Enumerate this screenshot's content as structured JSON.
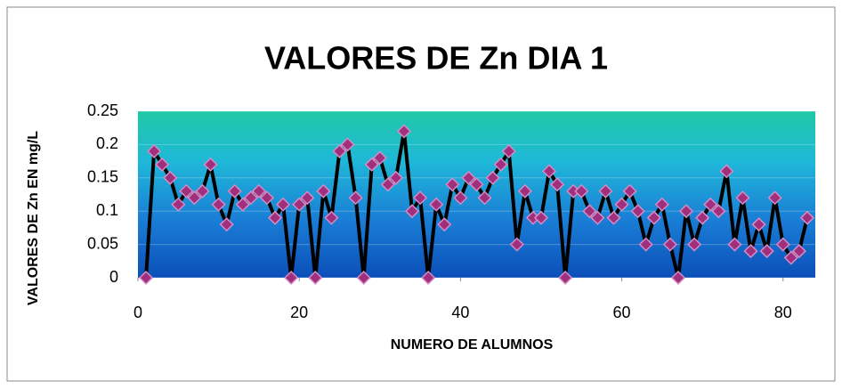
{
  "chart_data": {
    "type": "line",
    "title": "VALORES DE Zn DIA 1",
    "x_label": "NUMERO DE ALUMNOS",
    "y_label": "VALORES DE Zn EN mg/L",
    "x": [
      1,
      2,
      3,
      4,
      5,
      6,
      7,
      8,
      9,
      10,
      11,
      12,
      13,
      14,
      15,
      16,
      17,
      18,
      19,
      20,
      21,
      22,
      23,
      24,
      25,
      26,
      27,
      28,
      29,
      30,
      31,
      32,
      33,
      34,
      35,
      36,
      37,
      38,
      39,
      40,
      41,
      42,
      43,
      44,
      45,
      46,
      47,
      48,
      49,
      50,
      51,
      52,
      53,
      54,
      55,
      56,
      57,
      58,
      59,
      60,
      61,
      62,
      63,
      64,
      65,
      66,
      67,
      68,
      69,
      70,
      71,
      72,
      73,
      74,
      75,
      76,
      77,
      78,
      79,
      80,
      81,
      82,
      83
    ],
    "series": [
      {
        "color": "#000000",
        "marker_color": "#a0307e",
        "values": [
          0,
          0.19,
          0.17,
          0.15,
          0.11,
          0.13,
          0.12,
          0.13,
          0.17,
          0.11,
          0.08,
          0.13,
          0.11,
          0.12,
          0.13,
          0.12,
          0.09,
          0.11,
          0,
          0.11,
          0.12,
          0,
          0.13,
          0.09,
          0.19,
          0.2,
          0.12,
          0,
          0.17,
          0.18,
          0.14,
          0.15,
          0.22,
          0.1,
          0.12,
          0,
          0.11,
          0.08,
          0.14,
          0.12,
          0.15,
          0.14,
          0.12,
          0.15,
          0.17,
          0.19,
          0.05,
          0.13,
          0.09,
          0.09,
          0.16,
          0.14,
          0,
          0.13,
          0.13,
          0.1,
          0.09,
          0.13,
          0.09,
          0.11,
          0.13,
          0.1,
          0.05,
          0.09,
          0.11,
          0.05,
          0,
          0.1,
          0.05,
          0.09,
          0.11,
          0.1,
          0.16,
          0.05,
          0.12,
          0.04,
          0.08,
          0.04,
          0.12,
          0.05,
          0.03,
          0.04,
          0.09
        ]
      }
    ],
    "xlim": [
      0,
      84
    ],
    "xticks": [
      0,
      20,
      40,
      60,
      80
    ],
    "ylim": [
      0,
      0.25
    ],
    "yticks": [
      0,
      0.05,
      0.1,
      0.15,
      0.2,
      0.25
    ],
    "grid": true
  }
}
